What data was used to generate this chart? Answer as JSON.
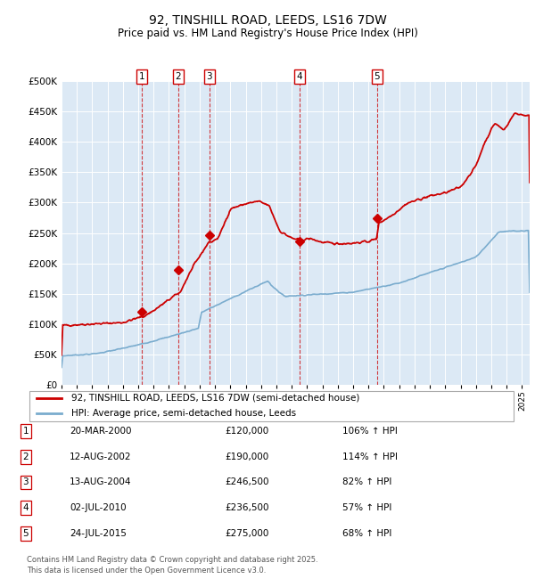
{
  "title": "92, TINSHILL ROAD, LEEDS, LS16 7DW",
  "subtitle": "Price paid vs. HM Land Registry's House Price Index (HPI)",
  "legend_line1": "92, TINSHILL ROAD, LEEDS, LS16 7DW (semi-detached house)",
  "legend_line2": "HPI: Average price, semi-detached house, Leeds",
  "footer": "Contains HM Land Registry data © Crown copyright and database right 2025.\nThis data is licensed under the Open Government Licence v3.0.",
  "red_color": "#cc0000",
  "blue_color": "#7aacce",
  "bg_color": "#dce9f5",
  "transactions": [
    {
      "num": 1,
      "date": "20-MAR-2000",
      "date_dec": 2000.21,
      "price": 120000,
      "pct": "106%",
      "dir": "↑"
    },
    {
      "num": 2,
      "date": "12-AUG-2002",
      "date_dec": 2002.61,
      "price": 190000,
      "pct": "114%",
      "dir": "↑"
    },
    {
      "num": 3,
      "date": "13-AUG-2004",
      "date_dec": 2004.62,
      "price": 246500,
      "pct": "82%",
      "dir": "↑"
    },
    {
      "num": 4,
      "date": "02-JUL-2010",
      "date_dec": 2010.5,
      "price": 236500,
      "pct": "57%",
      "dir": "↑"
    },
    {
      "num": 5,
      "date": "24-JUL-2015",
      "date_dec": 2015.56,
      "price": 275000,
      "pct": "68%",
      "dir": "↑"
    }
  ],
  "ylim": [
    0,
    500000
  ],
  "yticks": [
    0,
    50000,
    100000,
    150000,
    200000,
    250000,
    300000,
    350000,
    400000,
    450000,
    500000
  ],
  "xlim_start": 1995.0,
  "xlim_end": 2025.5
}
